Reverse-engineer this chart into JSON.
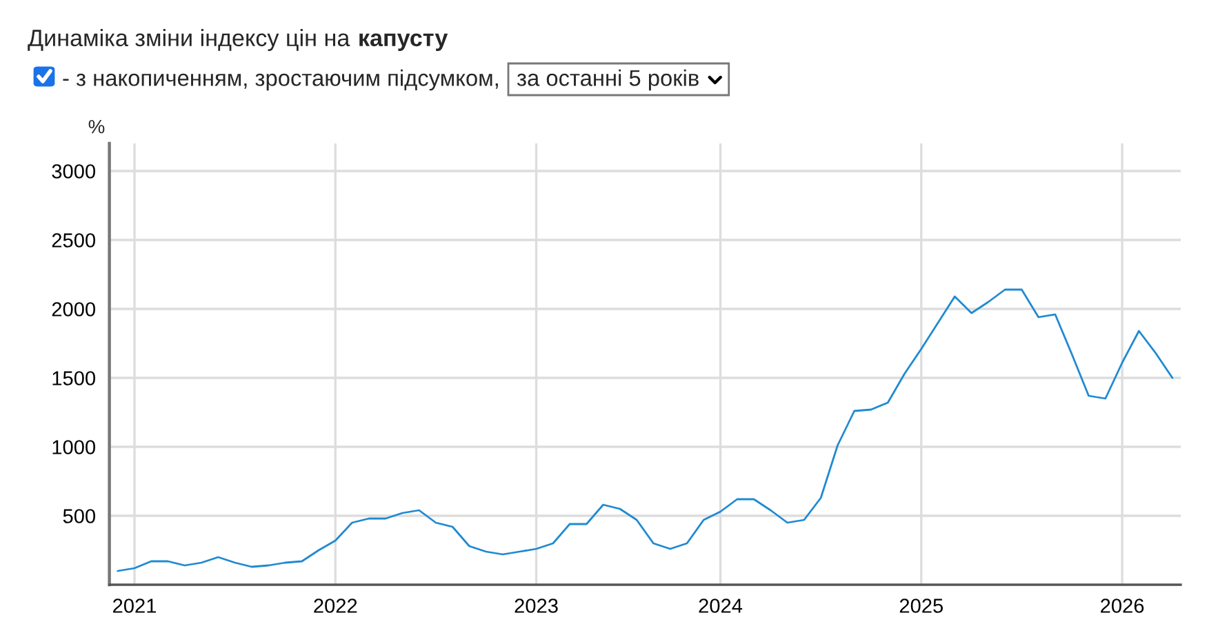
{
  "chart_data": {
    "type": "line",
    "title": "Динаміка зміни індексу цін на капусту",
    "subtitle": "- з накопиченням, зростаючим підсумком,",
    "annotations": [
      "за останні 5 років"
    ],
    "ylabel": "%",
    "categories": [
      null,
      "2021",
      null,
      null,
      null,
      null,
      null,
      null,
      null,
      null,
      null,
      null,
      null,
      "2022",
      null,
      null,
      null,
      null,
      null,
      null,
      null,
      null,
      null,
      null,
      null,
      "2023",
      null,
      null,
      null,
      null,
      null,
      null,
      null,
      null,
      null,
      null,
      "2024",
      null,
      null,
      null,
      null,
      null,
      null,
      null,
      null,
      null,
      null,
      null,
      "2025",
      null,
      null,
      null,
      null,
      null,
      null,
      null,
      null,
      null,
      null,
      null,
      "2026",
      null,
      null,
      null
    ],
    "series": [
      {
        "color": "#1f8ad2",
        "values": [
          100,
          120,
          170,
          170,
          140,
          160,
          200,
          160,
          130,
          140,
          160,
          170,
          250,
          320,
          450,
          480,
          480,
          520,
          540,
          450,
          420,
          280,
          240,
          220,
          240,
          260,
          300,
          440,
          440,
          580,
          550,
          470,
          300,
          260,
          300,
          470,
          530,
          620,
          620,
          540,
          450,
          470,
          630,
          1010,
          1260,
          1270,
          1320,
          1530,
          1710,
          1900,
          2090,
          1970,
          2050,
          2140,
          2140,
          1940,
          1960,
          1670,
          1370,
          1350,
          1610,
          1840,
          1680,
          1500
        ]
      }
    ],
    "ylim": [
      0,
      3200
    ],
    "yticks": [
      500,
      1000,
      1500,
      2000,
      2500,
      3000
    ],
    "grid": true,
    "marker": "none",
    "line_style": "solid"
  }
}
